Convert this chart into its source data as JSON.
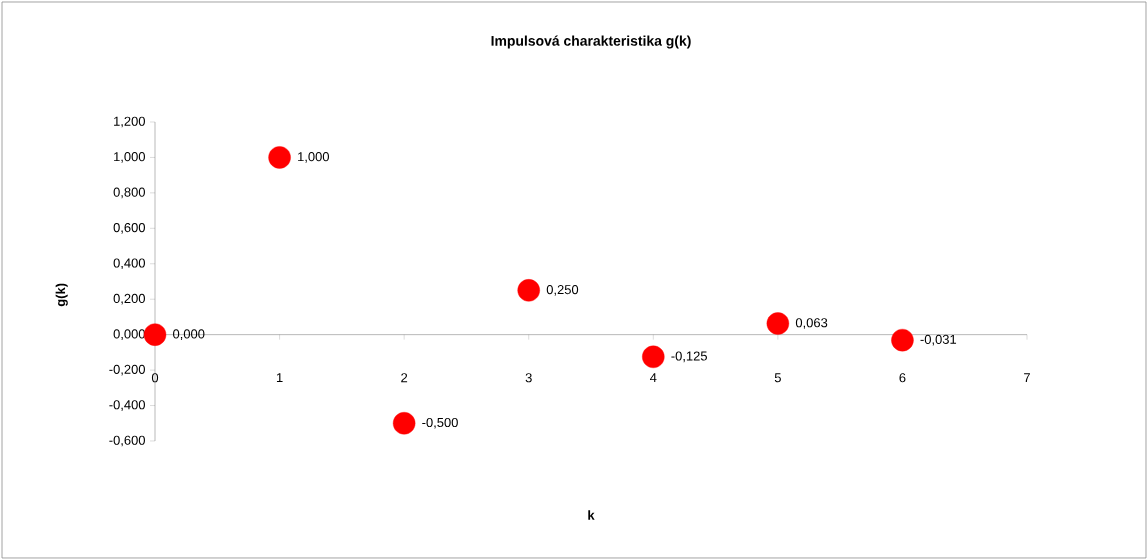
{
  "chart_data": {
    "type": "scatter",
    "title": "Impulsová  charakteristika g(k)",
    "xlabel": "k",
    "ylabel": "g(k)",
    "x": [
      0,
      1,
      2,
      3,
      4,
      5,
      6
    ],
    "series": [
      {
        "color": "#ff0000",
        "values": [
          0,
          1,
          -0.5,
          0.25,
          -0.125,
          0.063,
          -0.031
        ],
        "value_labels": [
          "0,000",
          "1,000",
          "-0,500",
          "0,250",
          "-0,125",
          "0,063",
          "-0,031"
        ]
      }
    ],
    "marker": "circle",
    "xlim": [
      0,
      7
    ],
    "xticks": [
      0,
      1,
      2,
      3,
      4,
      5,
      6,
      7
    ],
    "ylim": [
      -0.6,
      1.2
    ],
    "yticks": [
      {
        "value": 1.2,
        "label": "1,200"
      },
      {
        "value": 1.0,
        "label": "1,000"
      },
      {
        "value": 0.8,
        "label": "0,800"
      },
      {
        "value": 0.6,
        "label": "0,600"
      },
      {
        "value": 0.4,
        "label": "0,400"
      },
      {
        "value": 0.2,
        "label": "0,200"
      },
      {
        "value": 0.0,
        "label": "0,000"
      },
      {
        "value": -0.2,
        "label": "-0,200"
      },
      {
        "value": -0.4,
        "label": "-0,400"
      },
      {
        "value": -0.6,
        "label": "-0,600"
      }
    ]
  }
}
